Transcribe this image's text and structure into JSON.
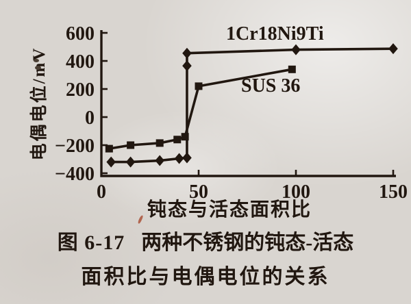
{
  "page": {
    "background_color": "#d9d5d0",
    "ink_color": "#211710",
    "pen_mark_color": "#a84a30"
  },
  "chart_data": {
    "type": "line",
    "xlabel": "钝态与活态面积比",
    "ylabel": "电偶电位/mV",
    "xlim": [
      0,
      150
    ],
    "ylim": [
      -400,
      600
    ],
    "x_ticks": [
      0,
      50,
      100,
      150
    ],
    "y_ticks": [
      600,
      400,
      200,
      0,
      -200,
      -400
    ],
    "grid": false,
    "legend_position": "inline-labels",
    "series": [
      {
        "name": "1Cr18Ni9Ti",
        "marker": "diamond",
        "points": [
          [
            5,
            -320
          ],
          [
            15,
            -320
          ],
          [
            30,
            -310
          ],
          [
            40,
            -295
          ],
          [
            44,
            -290
          ],
          [
            44,
            365
          ],
          [
            44,
            455
          ],
          [
            100,
            480
          ],
          [
            150,
            487
          ]
        ]
      },
      {
        "name": "SUS 36",
        "marker": "square",
        "points": [
          [
            4,
            -225
          ],
          [
            15,
            -200
          ],
          [
            30,
            -185
          ],
          [
            39,
            -160
          ],
          [
            43,
            -140
          ],
          [
            50,
            220
          ],
          [
            98,
            340
          ]
        ]
      }
    ]
  },
  "caption": {
    "figure_label": "图 6-17",
    "title_line1": "两种不锈钢的钝态-活态",
    "title_line2": "面积比与电偶电位的关系"
  }
}
